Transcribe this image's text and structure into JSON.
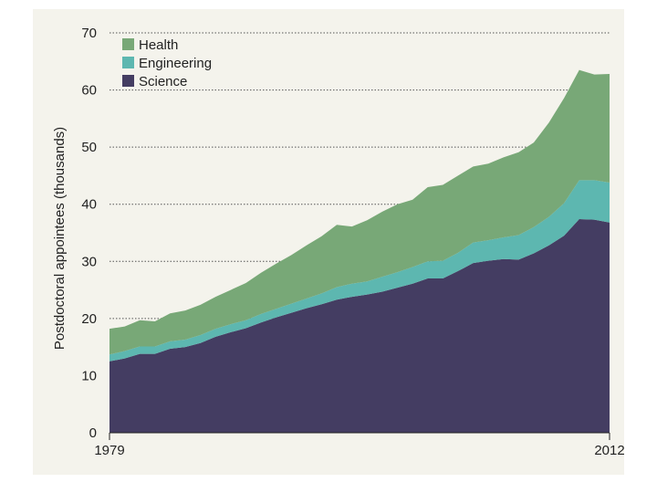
{
  "chart_data": {
    "type": "area",
    "stacked": true,
    "ylabel": "Postdoctoral appointees (thousands)",
    "ylim": [
      0,
      70
    ],
    "yticks": [
      0,
      10,
      20,
      30,
      40,
      50,
      60,
      70
    ],
    "xlim": [
      1979,
      2012
    ],
    "xtick_labels": [
      "1979",
      "2012"
    ],
    "grid": "horizontal-dotted",
    "legend_position": "top-left",
    "x": [
      1979,
      1980,
      1981,
      1982,
      1983,
      1984,
      1985,
      1986,
      1987,
      1988,
      1989,
      1990,
      1991,
      1992,
      1993,
      1994,
      1995,
      1996,
      1997,
      1998,
      1999,
      2000,
      2001,
      2002,
      2003,
      2004,
      2005,
      2006,
      2007,
      2008,
      2009,
      2010,
      2011,
      2012
    ],
    "series": [
      {
        "name": "Science",
        "color": "#443d62",
        "values": [
          12.5,
          13.0,
          13.8,
          13.8,
          14.7,
          15.0,
          15.7,
          16.8,
          17.6,
          18.3,
          19.3,
          20.2,
          21.0,
          21.8,
          22.5,
          23.3,
          23.8,
          24.2,
          24.7,
          25.4,
          26.1,
          27.0,
          27.0,
          28.3,
          29.7,
          30.1,
          30.4,
          30.3,
          31.4,
          32.8,
          34.5,
          37.4,
          37.3,
          36.8
        ]
      },
      {
        "name": "Engineering",
        "color": "#5db7b0",
        "values": [
          1.2,
          1.3,
          1.3,
          1.3,
          1.3,
          1.3,
          1.4,
          1.4,
          1.4,
          1.4,
          1.5,
          1.5,
          1.6,
          1.7,
          1.9,
          2.2,
          2.3,
          2.3,
          2.6,
          2.7,
          2.9,
          3.0,
          3.1,
          3.2,
          3.6,
          3.6,
          3.8,
          4.3,
          4.6,
          5.0,
          5.7,
          6.8,
          6.9,
          7.0
        ]
      },
      {
        "name": "Health",
        "color": "#78a877",
        "values": [
          4.5,
          4.3,
          4.6,
          4.4,
          4.9,
          5.1,
          5.3,
          5.6,
          6.0,
          6.5,
          7.2,
          7.9,
          8.5,
          9.3,
          10.0,
          10.9,
          10.0,
          10.7,
          11.4,
          11.9,
          11.8,
          13.0,
          13.3,
          13.5,
          13.3,
          13.4,
          14.0,
          14.5,
          14.8,
          16.5,
          18.4,
          19.3,
          18.5,
          19.0
        ]
      }
    ]
  }
}
